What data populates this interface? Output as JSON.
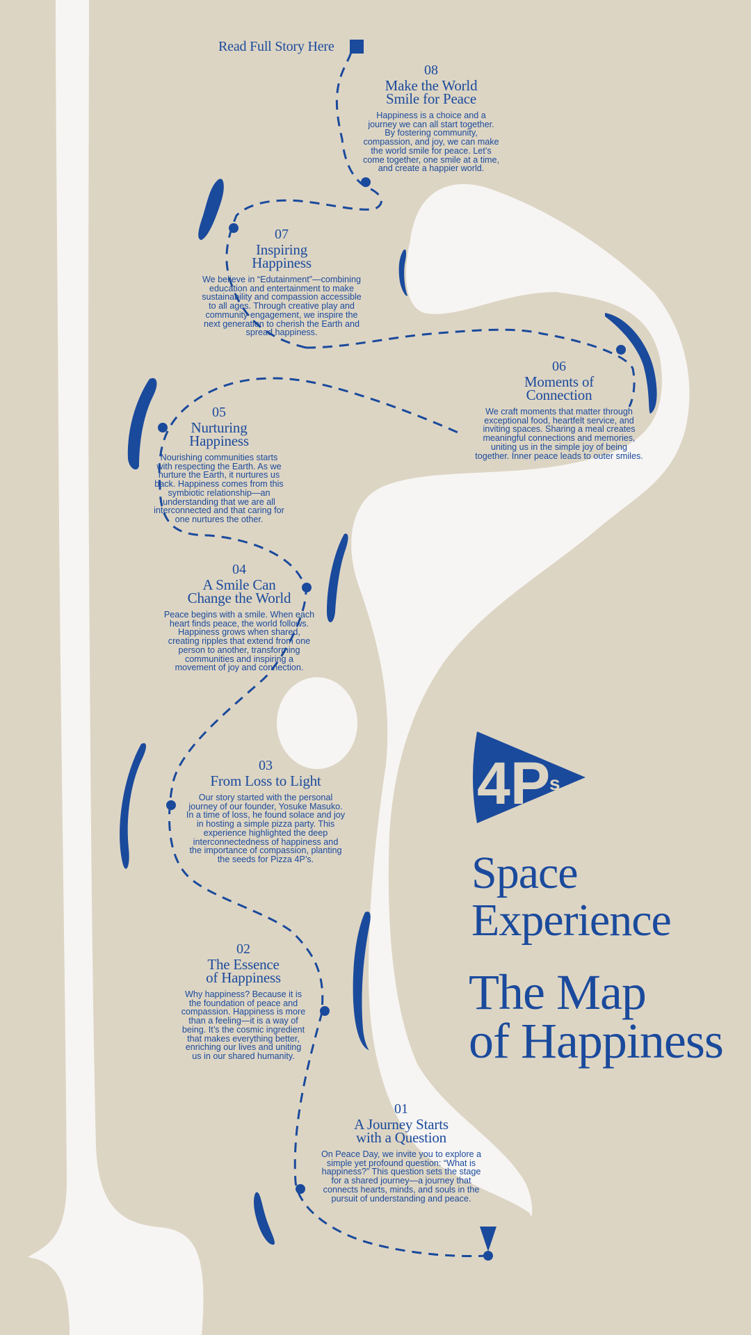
{
  "read_story": {
    "label": "Read Full Story Here"
  },
  "logo": {
    "main": "4P",
    "suffix": "s"
  },
  "headline": {
    "space": "Space\nExperience",
    "map": "The Map\nof Happiness"
  },
  "colors": {
    "background": "#ddd5c4",
    "accent": "#1a4a9c",
    "path": "#f7f5f3"
  },
  "stops": [
    {
      "number": "01",
      "title": "A Journey Starts\nwith a Question",
      "body": "On Peace Day, we invite you to explore a\nsimple yet profound question: “What is\nhappiness?” This question sets the stage\nfor a shared journey—a journey that\nconnects hearts, minds, and souls in the\npursuit of understanding and peace."
    },
    {
      "number": "02",
      "title": "The Essence\nof Happiness",
      "body": "Why happiness? Because it is\nthe foundation of peace and\ncompassion. Happiness is more\nthan a feeling—it is a way of\nbeing. It’s the cosmic ingredient\nthat makes everything better,\nenriching our lives and uniting\nus in our shared humanity."
    },
    {
      "number": "03",
      "title": "From Loss to Light",
      "body": "Our story started with the personal\njourney of our founder, Yosuke Masuko.\nIn a time of loss, he found solace and joy\nin hosting a simple pizza party. This\nexperience highlighted the deep\ninterconnectedness of happiness and\nthe importance of compassion, planting\nthe seeds for Pizza 4P’s."
    },
    {
      "number": "04",
      "title": "A Smile Can\nChange the World",
      "body": "Peace begins with a smile. When each\nheart finds peace, the world follows.\nHappiness grows when shared,\ncreating ripples that extend from one\nperson to another, transforming\ncommunities and inspiring a\nmovement of joy and connection."
    },
    {
      "number": "05",
      "title": "Nurturing\nHappiness",
      "body": "Nourishing communities starts\nwith respecting the Earth. As we\nnurture the Earth, it nurtures us\nback. Happiness comes from this\nsymbiotic relationship—an\nunderstanding that we are all\ninterconnected and that caring for\none nurtures the other."
    },
    {
      "number": "06",
      "title": "Moments of\nConnection",
      "body": "We craft moments that matter through\nexceptional food, heartfelt service, and\ninviting spaces. Sharing a meal creates\nmeaningful connections and memories,\nuniting us in the simple joy of being\ntogether. Inner peace leads to outer smiles."
    },
    {
      "number": "07",
      "title": "Inspiring\nHappiness",
      "body": "We believe in “Edutainment”—combining\neducation and entertainment to make\nsustainability and compassion accessible\nto all ages. Through creative play and\ncommunity engagement, we inspire the\nnext generation to cherish the Earth and\nspread happiness."
    },
    {
      "number": "08",
      "title": "Make the World\nSmile for Peace",
      "body": "Happiness is a choice and a\njourney we can all start together.\nBy fostering community,\ncompassion, and joy, we can make\nthe world smile for peace. Let’s\ncome together, one smile at a time,\nand create a happier world."
    }
  ]
}
